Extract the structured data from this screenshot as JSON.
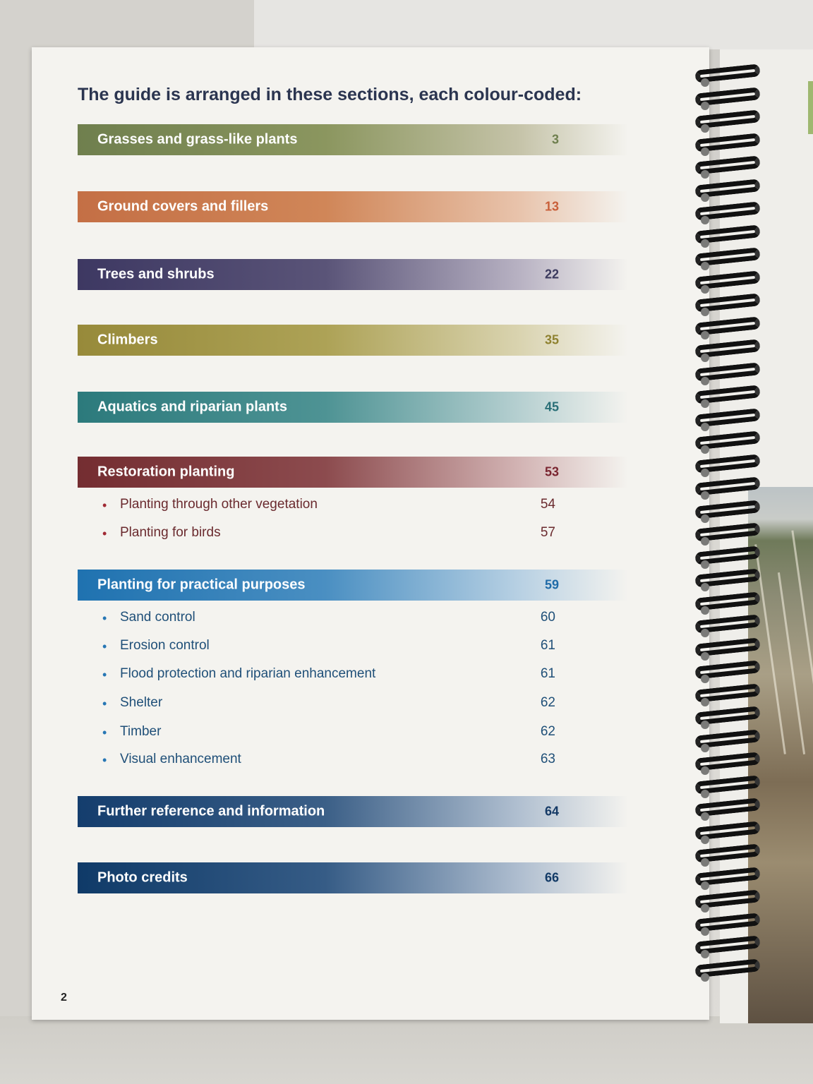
{
  "heading": "The guide is arranged in these sections, each colour-coded:",
  "page_number": "2",
  "colors": {
    "grasses": "#6f7f4e",
    "ground": "#c46f45",
    "trees": "#413c66",
    "climbers": "#9c8d3a",
    "aquatics": "#2f7f80",
    "restoration": "#7a2f34",
    "practical": "#2579b6",
    "further": "#143d6d",
    "photo": "#0f3a68"
  },
  "sections": [
    {
      "label": "Grasses and grass-like plants",
      "page": "3"
    },
    {
      "label": "Ground covers and fillers",
      "page": "13"
    },
    {
      "label": "Trees and shrubs",
      "page": "22"
    },
    {
      "label": "Climbers",
      "page": "35"
    },
    {
      "label": "Aquatics and riparian plants",
      "page": "45"
    },
    {
      "label": "Restoration planting",
      "page": "53",
      "items": [
        {
          "label": "Planting through other vegetation",
          "page": "54"
        },
        {
          "label": "Planting for birds",
          "page": "57"
        }
      ]
    },
    {
      "label": "Planting for practical purposes",
      "page": "59",
      "items": [
        {
          "label": "Sand control",
          "page": "60"
        },
        {
          "label": "Erosion control",
          "page": "61"
        },
        {
          "label": "Flood protection and riparian enhancement",
          "page": "61"
        },
        {
          "label": "Shelter",
          "page": "62"
        },
        {
          "label": "Timber",
          "page": "62"
        },
        {
          "label": "Visual enhancement",
          "page": "63"
        }
      ]
    },
    {
      "label": "Further reference and information",
      "page": "64"
    },
    {
      "label": "Photo credits",
      "page": "66"
    }
  ]
}
